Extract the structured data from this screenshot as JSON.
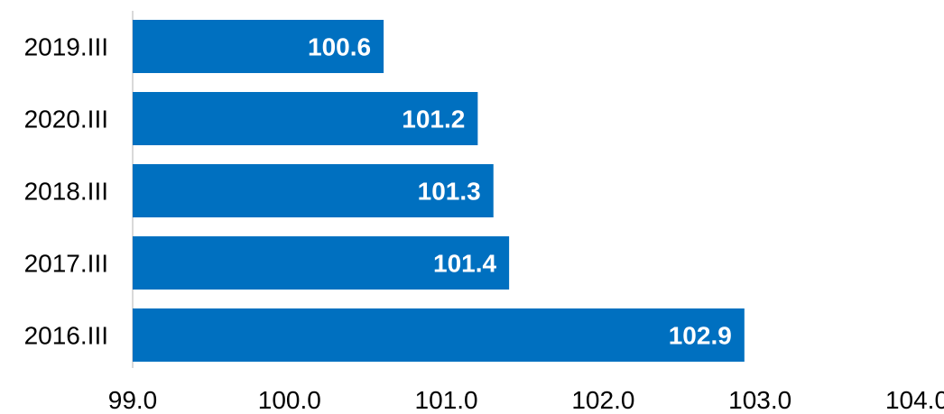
{
  "chart_data": {
    "type": "bar",
    "orientation": "horizontal",
    "categories": [
      "2019.III",
      "2020.III",
      "2018.III",
      "2017.III",
      "2016.III"
    ],
    "values": [
      100.6,
      101.2,
      101.3,
      101.4,
      102.9
    ],
    "value_labels": [
      "100.6",
      "101.2",
      "101.3",
      "101.4",
      "102.9"
    ],
    "x_ticks": [
      "99.0",
      "100.0",
      "101.0",
      "102.0",
      "103.0",
      "104.0"
    ],
    "xlim": [
      99.0,
      104.0
    ],
    "title": "",
    "xlabel": "",
    "ylabel": "",
    "grid": false,
    "bar_color": "#0070C0",
    "value_label_color": "#FFFFFF",
    "axis_color": "#D9D9D9"
  }
}
